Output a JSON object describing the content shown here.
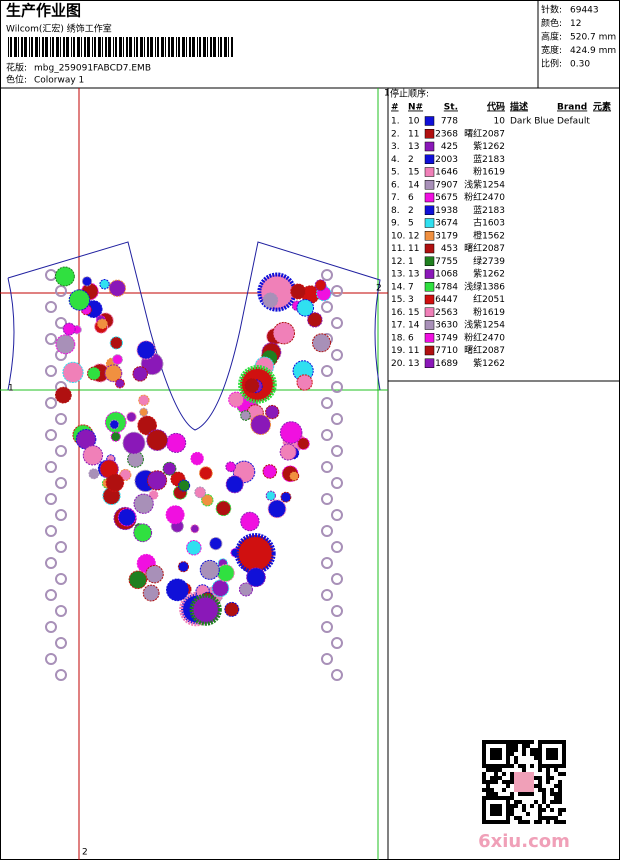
{
  "header": {
    "title": "生产作业图",
    "company": "Wilcom(汇宏) 绣饰工作室",
    "design_label": "花版:",
    "design": "mbg_259091FABCD7.EMB",
    "colorway_label": "色位:",
    "colorway": "Colorway 1"
  },
  "info": [
    {
      "label": "针数:",
      "value": "69443"
    },
    {
      "label": "颜色:",
      "value": "12"
    },
    {
      "label": "高度:",
      "value": "520.7 mm"
    },
    {
      "label": "宽度:",
      "value": "424.9 mm"
    },
    {
      "label": "比例:",
      "value": "0.30"
    }
  ],
  "guides": {
    "top": "1",
    "left": "1",
    "right": "2",
    "bottom": "2"
  },
  "stops": {
    "title": "停止顺序:",
    "columns": [
      "#",
      "N#",
      "St.",
      "代码",
      "描述",
      "Brand",
      "元素"
    ],
    "rows": [
      {
        "seq": "1.",
        "needle": "10",
        "color": "#1010d8",
        "stitches": 778,
        "code": "10",
        "desc": "Dark Blue",
        "brand": "Default"
      },
      {
        "seq": "2.",
        "needle": "11",
        "color": "#b01010",
        "stitches": 2368,
        "code": "曙红2087"
      },
      {
        "seq": "3.",
        "needle": "13",
        "color": "#8a18b8",
        "stitches": 425,
        "code": "紫1262"
      },
      {
        "seq": "4.",
        "needle": "2",
        "color": "#1010d8",
        "stitches": 2003,
        "code": "蓝2183"
      },
      {
        "seq": "5.",
        "needle": "15",
        "color": "#f080b8",
        "stitches": 1646,
        "code": "粉1619"
      },
      {
        "seq": "6.",
        "needle": "14",
        "color": "#a890b8",
        "stitches": 7907,
        "code": "浅紫1254"
      },
      {
        "seq": "7.",
        "needle": "6",
        "color": "#f010e0",
        "stitches": 5675,
        "code": "粉红2470"
      },
      {
        "seq": "8.",
        "needle": "2",
        "color": "#1010d8",
        "stitches": 1938,
        "code": "蓝2183"
      },
      {
        "seq": "9.",
        "needle": "5",
        "color": "#30e0f0",
        "stitches": 3674,
        "code": "古1603"
      },
      {
        "seq": "10.",
        "needle": "12",
        "color": "#f09040",
        "stitches": 3179,
        "code": "橙1562"
      },
      {
        "seq": "11.",
        "needle": "11",
        "color": "#b01010",
        "stitches": 453,
        "code": "曙红2087"
      },
      {
        "seq": "12.",
        "needle": "1",
        "color": "#208020",
        "stitches": 7755,
        "code": "绿2739"
      },
      {
        "seq": "13.",
        "needle": "13",
        "color": "#8a18b8",
        "stitches": 1068,
        "code": "紫1262"
      },
      {
        "seq": "14.",
        "needle": "7",
        "color": "#30e040",
        "stitches": 4784,
        "code": "浅绿1386"
      },
      {
        "seq": "15.",
        "needle": "3",
        "color": "#d01010",
        "stitches": 6447,
        "code": "红2051"
      },
      {
        "seq": "16.",
        "needle": "15",
        "color": "#f080b8",
        "stitches": 2563,
        "code": "粉1619"
      },
      {
        "seq": "17.",
        "needle": "14",
        "color": "#a890b8",
        "stitches": 3630,
        "code": "浅紫1254"
      },
      {
        "seq": "18.",
        "needle": "6",
        "color": "#f010e0",
        "stitches": 3749,
        "code": "粉红2470"
      },
      {
        "seq": "19.",
        "needle": "11",
        "color": "#b01010",
        "stitches": 7710,
        "code": "曙红2087"
      },
      {
        "seq": "20.",
        "needle": "13",
        "color": "#8a18b8",
        "stitches": 1689,
        "code": "紫1262"
      }
    ]
  },
  "watermark": "6xiu.com"
}
